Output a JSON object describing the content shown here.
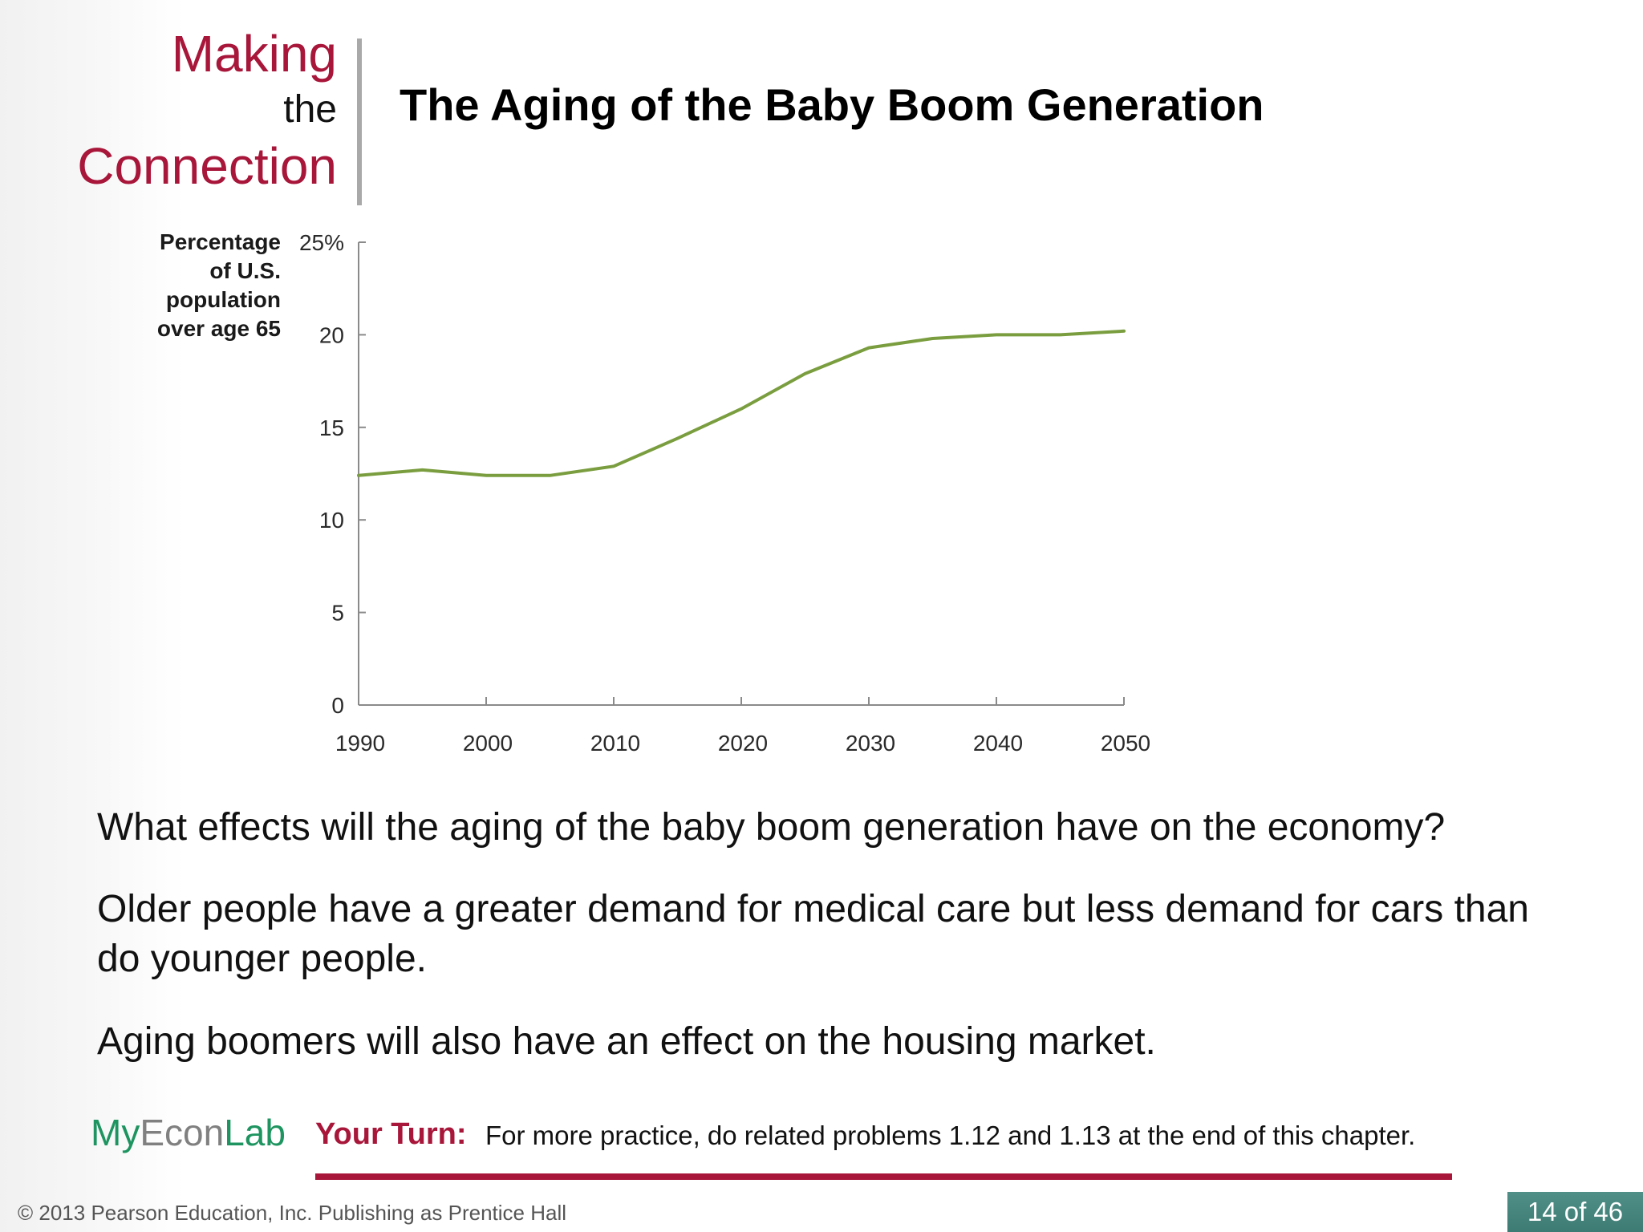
{
  "header": {
    "making": "Making",
    "the": "the",
    "connection": "Connection",
    "title": "The Aging of the Baby Boom Generation"
  },
  "chart_data": {
    "type": "line",
    "title": "",
    "ylabel_lines": [
      "Percentage",
      "of U.S.",
      "population",
      "over age 65"
    ],
    "xlabel": "",
    "x_ticks": [
      "1990",
      "2000",
      "2010",
      "2020",
      "2030",
      "2040",
      "2050"
    ],
    "y_ticks": [
      "25%",
      "20",
      "15",
      "10",
      "5",
      "0"
    ],
    "xlim": [
      1990,
      2050
    ],
    "ylim": [
      0,
      25
    ],
    "grid": false,
    "series": [
      {
        "color": "#7a9e3f",
        "points": [
          {
            "x": 1990,
            "y": 12.4
          },
          {
            "x": 1995,
            "y": 12.7
          },
          {
            "x": 2000,
            "y": 12.4
          },
          {
            "x": 2005,
            "y": 12.4
          },
          {
            "x": 2010,
            "y": 12.9
          },
          {
            "x": 2015,
            "y": 14.4
          },
          {
            "x": 2020,
            "y": 16.0
          },
          {
            "x": 2025,
            "y": 17.9
          },
          {
            "x": 2030,
            "y": 19.3
          },
          {
            "x": 2035,
            "y": 19.8
          },
          {
            "x": 2040,
            "y": 20.0
          },
          {
            "x": 2045,
            "y": 20.0
          },
          {
            "x": 2050,
            "y": 20.2
          }
        ]
      }
    ]
  },
  "body": {
    "p1": "What effects will the aging of the baby boom generation have on the economy?",
    "p2": "Older people have a greater demand for medical care but less demand for cars than do younger people.",
    "p3": "Aging boomers will also have an effect on the housing market."
  },
  "footer": {
    "logo_my": "My",
    "logo_econ": "Econ",
    "logo_lab": "Lab",
    "your_turn_label": "Your Turn:",
    "your_turn_text": "For more practice, do related problems 1.12 and 1.13 at the end of this chapter.",
    "copyright": "© 2013 Pearson Education, Inc. Publishing as Prentice Hall",
    "page": "14 of 46"
  },
  "colors": {
    "accent_red": "#a8163a",
    "myeconlab_green": "#1e9460",
    "badge_teal": "#4f8f87"
  }
}
